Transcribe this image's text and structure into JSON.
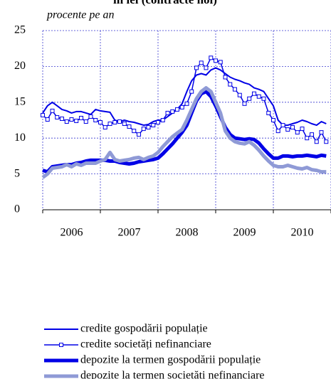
{
  "chart_data": {
    "type": "line",
    "title": "în lei (contracte noi)",
    "subtitle": "procente pe an",
    "x": [
      2006.0,
      2006.083,
      2006.167,
      2006.25,
      2006.333,
      2006.417,
      2006.5,
      2006.583,
      2006.667,
      2006.75,
      2006.833,
      2006.917,
      2007.0,
      2007.083,
      2007.167,
      2007.25,
      2007.333,
      2007.417,
      2007.5,
      2007.583,
      2007.667,
      2007.75,
      2007.833,
      2007.917,
      2008.0,
      2008.083,
      2008.167,
      2008.25,
      2008.333,
      2008.417,
      2008.5,
      2008.583,
      2008.667,
      2008.75,
      2008.833,
      2008.917,
      2009.0,
      2009.083,
      2009.167,
      2009.25,
      2009.333,
      2009.417,
      2009.5,
      2009.583,
      2009.667,
      2009.75,
      2009.833,
      2009.917,
      2010.0,
      2010.083,
      2010.167,
      2010.25,
      2010.333,
      2010.417,
      2010.5,
      2010.583,
      2010.667,
      2010.75,
      2010.833,
      2010.917
    ],
    "xlim": [
      2006,
      2011
    ],
    "xticks": [
      2006,
      2007,
      2008,
      2009,
      2010,
      2011
    ],
    "year_labels": [
      "2006",
      "2007",
      "2008",
      "2009",
      "2010"
    ],
    "ylim": [
      0,
      25
    ],
    "yticks": [
      0,
      5,
      10,
      15,
      20,
      25
    ],
    "grid": true,
    "series": [
      {
        "name": "credite gospodării populație",
        "color": "#0000e6",
        "line_width": 2,
        "marker": "none",
        "values": [
          13.5,
          14.5,
          15.0,
          14.5,
          14.0,
          13.8,
          13.5,
          13.7,
          13.7,
          13.5,
          13.3,
          14.0,
          13.8,
          13.7,
          13.6,
          12.5,
          12.3,
          12.5,
          12.3,
          12.2,
          12.0,
          11.8,
          11.9,
          12.3,
          12.5,
          12.5,
          13.0,
          13.5,
          14.0,
          14.8,
          16.5,
          18.0,
          18.8,
          19.0,
          18.8,
          19.5,
          19.8,
          19.5,
          19.0,
          18.5,
          18.2,
          18.0,
          17.7,
          17.5,
          17.0,
          16.8,
          16.5,
          15.5,
          14.5,
          12.5,
          11.8,
          11.8,
          12.0,
          12.2,
          12.5,
          12.3,
          12.0,
          11.8,
          12.3,
          12.0
        ]
      },
      {
        "name": "credite societăți nefinanciare",
        "color": "#0000e6",
        "line_width": 1.5,
        "marker": "square",
        "values": [
          13.2,
          12.6,
          13.8,
          12.9,
          12.7,
          12.3,
          12.6,
          12.4,
          12.8,
          12.3,
          13.0,
          12.5,
          12.2,
          11.5,
          12.0,
          12.2,
          12.3,
          12.0,
          11.6,
          11.0,
          10.5,
          11.3,
          11.5,
          11.8,
          12.2,
          12.5,
          13.5,
          13.7,
          14.0,
          14.3,
          14.8,
          16.5,
          19.8,
          20.5,
          19.8,
          21.2,
          20.8,
          20.6,
          18.5,
          17.5,
          16.8,
          16.0,
          14.8,
          15.5,
          16.2,
          15.8,
          15.5,
          13.5,
          12.5,
          11.0,
          11.8,
          11.2,
          11.5,
          10.8,
          11.3,
          10.0,
          10.5,
          9.5,
          10.8,
          9.5
        ]
      },
      {
        "name": "depozite la termen gospodării populație",
        "color": "#0000e6",
        "line_width": 5,
        "marker": "none",
        "values": [
          5.5,
          5.3,
          6.0,
          6.1,
          6.2,
          6.3,
          6.3,
          6.5,
          6.6,
          6.8,
          6.9,
          6.9,
          6.9,
          6.9,
          6.8,
          6.8,
          6.6,
          6.5,
          6.4,
          6.5,
          6.7,
          6.8,
          6.9,
          7.0,
          7.2,
          7.8,
          8.5,
          9.2,
          10.0,
          10.8,
          11.8,
          13.5,
          15.2,
          16.2,
          16.5,
          15.8,
          14.5,
          13.0,
          11.5,
          10.5,
          10.0,
          9.9,
          9.8,
          9.9,
          9.8,
          9.3,
          8.5,
          7.8,
          7.2,
          7.2,
          7.5,
          7.5,
          7.4,
          7.5,
          7.5,
          7.6,
          7.5,
          7.4,
          7.6,
          7.5
        ]
      },
      {
        "name": "depozite la termen societăți nefinanciare",
        "color": "#8f9ad6",
        "line_width": 5,
        "marker": "none",
        "values": [
          4.5,
          5.0,
          5.8,
          5.9,
          6.0,
          6.3,
          6.0,
          6.4,
          6.2,
          6.5,
          6.5,
          6.5,
          6.8,
          7.0,
          8.0,
          7.0,
          6.8,
          6.9,
          7.0,
          7.2,
          7.3,
          7.0,
          7.3,
          7.5,
          8.0,
          8.8,
          9.5,
          10.2,
          10.7,
          11.2,
          12.5,
          14.0,
          15.5,
          16.5,
          17.0,
          16.5,
          15.0,
          13.5,
          11.0,
          10.0,
          9.5,
          9.3,
          9.2,
          9.5,
          9.0,
          8.3,
          7.5,
          6.8,
          6.2,
          6.0,
          6.0,
          6.2,
          6.0,
          5.8,
          5.7,
          5.9,
          5.6,
          5.5,
          5.3,
          5.3
        ]
      }
    ]
  }
}
